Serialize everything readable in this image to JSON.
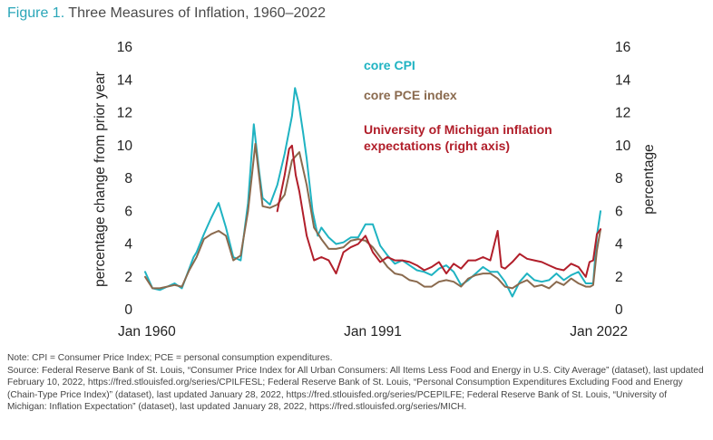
{
  "figure": {
    "label": "Figure 1.",
    "title": "Three Measures of Inflation, 1960–2022"
  },
  "notes": {
    "note": "Note: CPI = Consumer Price Index; PCE = personal consumption expenditures.",
    "source": "Source: Federal Reserve Bank of St. Louis, “Consumer Price Index for All Urban Consumers: All Items Less Food and Energy in U.S. City Average” (dataset), last updated February 10, 2022, https://fred.stlouisfed.org/series/CPILFESL; Federal Reserve Bank of St. Louis, “Personal Consumption Expenditures Excluding Food and Energy (Chain-Type Price Index)” (dataset), last updated January 28, 2022, https://fred.stlouisfed.org/series/PCEPILFE; Federal Reserve Bank of St. Louis, “University of Michigan: Inflation Expectation” (dataset), last updated January 28, 2022, https://fred.stlouisfed.org/series/MICH."
  },
  "chart_data": {
    "type": "line",
    "title": "Three Measures of Inflation, 1960–2022",
    "xlabel": "",
    "ylabel_left": "percentage change from prior year",
    "ylabel_right": "percentage",
    "xlim": [
      1960,
      2022
    ],
    "ylim_left": [
      0,
      16
    ],
    "ylim_right": [
      0,
      16
    ],
    "x_tick_labels": [
      {
        "value": 1960,
        "label": "Jan 1960"
      },
      {
        "value": 1991,
        "label": "Jan 1991"
      },
      {
        "value": 2022,
        "label": "Jan 2022"
      }
    ],
    "y_ticks": [
      0,
      2,
      4,
      6,
      8,
      10,
      12,
      14,
      16
    ],
    "grid": false,
    "legend": [
      {
        "text": "core CPI",
        "color": "#1fb3c2"
      },
      {
        "text": "core PCE index",
        "color": "#8a6a4e"
      },
      {
        "text": "University of Michigan inflation",
        "color": "#b11e2a"
      },
      {
        "text": "expectations (right axis)",
        "color": "#b11e2a"
      }
    ],
    "legend_placement": "top-center",
    "series": [
      {
        "name": "core CPI",
        "color": "#1fb3c2",
        "axis": "left",
        "x": [
          1960,
          1961,
          1962,
          1963,
          1964,
          1965,
          1966,
          1966.6,
          1967,
          1968,
          1969,
          1970,
          1971,
          1972,
          1973,
          1974,
          1974.8,
          1975.5,
          1976,
          1977,
          1978,
          1979,
          1980,
          1980.4,
          1980.9,
          1981.5,
          1982,
          1982.8,
          1983.5,
          1984,
          1985,
          1986,
          1987,
          1988,
          1989,
          1990,
          1991,
          1992,
          1993,
          1994,
          1995,
          1996,
          1997,
          1998,
          1999,
          2000,
          2001,
          2002,
          2003,
          2004,
          2005,
          2006,
          2007,
          2008,
          2009,
          2010,
          2011,
          2012,
          2013,
          2014,
          2015,
          2016,
          2017,
          2018,
          2019,
          2020,
          2020.6,
          2021,
          2021.5,
          2022
        ],
        "y": [
          2.3,
          1.3,
          1.2,
          1.4,
          1.6,
          1.3,
          2.5,
          3.2,
          3.5,
          4.6,
          5.6,
          6.5,
          5.0,
          3.2,
          3.0,
          6.5,
          11.3,
          8.5,
          6.8,
          6.4,
          7.6,
          9.5,
          11.8,
          13.5,
          12.6,
          10.8,
          9.2,
          6.0,
          4.5,
          5.0,
          4.4,
          4.0,
          4.1,
          4.4,
          4.4,
          5.2,
          5.2,
          3.9,
          3.3,
          2.8,
          3.0,
          2.7,
          2.4,
          2.3,
          2.1,
          2.5,
          2.7,
          2.3,
          1.5,
          1.8,
          2.2,
          2.6,
          2.3,
          2.3,
          1.7,
          0.8,
          1.7,
          2.2,
          1.8,
          1.7,
          1.8,
          2.2,
          1.8,
          2.1,
          2.3,
          1.6,
          1.6,
          1.6,
          4.5,
          6.0
        ]
      },
      {
        "name": "core PCE index",
        "color": "#8a6a4e",
        "axis": "left",
        "x": [
          1960,
          1961,
          1962,
          1963,
          1964,
          1965,
          1966,
          1967,
          1968,
          1969,
          1970,
          1971,
          1972,
          1973,
          1974,
          1975,
          1976,
          1977,
          1978,
          1979,
          1980,
          1981,
          1982,
          1983,
          1984,
          1985,
          1986,
          1987,
          1988,
          1989,
          1990,
          1991,
          1992,
          1993,
          1994,
          1995,
          1996,
          1997,
          1998,
          1999,
          2000,
          2001,
          2002,
          2003,
          2004,
          2005,
          2006,
          2007,
          2008,
          2009,
          2010,
          2011,
          2012,
          2013,
          2014,
          2015,
          2016,
          2017,
          2018,
          2019,
          2020,
          2020.6,
          2021,
          2021.5,
          2022
        ],
        "y": [
          2.0,
          1.3,
          1.3,
          1.4,
          1.5,
          1.4,
          2.4,
          3.2,
          4.3,
          4.6,
          4.8,
          4.5,
          3.0,
          3.3,
          6.0,
          10.1,
          6.3,
          6.2,
          6.4,
          7.0,
          9.1,
          9.6,
          7.6,
          5.0,
          4.3,
          3.7,
          3.7,
          3.8,
          4.2,
          4.3,
          4.2,
          3.8,
          3.2,
          2.6,
          2.2,
          2.1,
          1.8,
          1.7,
          1.4,
          1.4,
          1.7,
          1.8,
          1.7,
          1.4,
          1.9,
          2.1,
          2.2,
          2.2,
          1.9,
          1.4,
          1.3,
          1.6,
          1.8,
          1.4,
          1.5,
          1.3,
          1.7,
          1.5,
          1.9,
          1.6,
          1.4,
          1.4,
          1.5,
          3.6,
          4.9
        ]
      },
      {
        "name": "University of Michigan inflation expectations (right axis)",
        "color": "#b11e2a",
        "axis": "right",
        "x": [
          1978,
          1979,
          1979.6,
          1980,
          1980.5,
          1981,
          1982,
          1983,
          1984,
          1985,
          1986,
          1987,
          1988,
          1989,
          1990,
          1991,
          1992,
          1993,
          1994,
          1995,
          1996,
          1997,
          1998,
          1999,
          2000,
          2001,
          2002,
          2003,
          2004,
          2005,
          2006,
          2007,
          2008,
          2008.5,
          2009,
          2010,
          2011,
          2012,
          2013,
          2014,
          2015,
          2016,
          2017,
          2018,
          2019,
          2020,
          2020.5,
          2021,
          2021.5,
          2022
        ],
        "y": [
          6.0,
          8.2,
          9.8,
          10.0,
          8.2,
          7.2,
          4.5,
          3.0,
          3.2,
          3.0,
          2.2,
          3.5,
          3.8,
          4.0,
          4.5,
          3.5,
          2.9,
          3.2,
          3.0,
          3.0,
          2.9,
          2.7,
          2.4,
          2.6,
          2.9,
          2.2,
          2.8,
          2.5,
          3.0,
          3.0,
          3.2,
          3.0,
          4.8,
          2.6,
          2.5,
          2.9,
          3.4,
          3.1,
          3.0,
          2.9,
          2.7,
          2.5,
          2.4,
          2.8,
          2.6,
          2.0,
          2.9,
          3.0,
          4.6,
          4.9
        ]
      }
    ]
  }
}
